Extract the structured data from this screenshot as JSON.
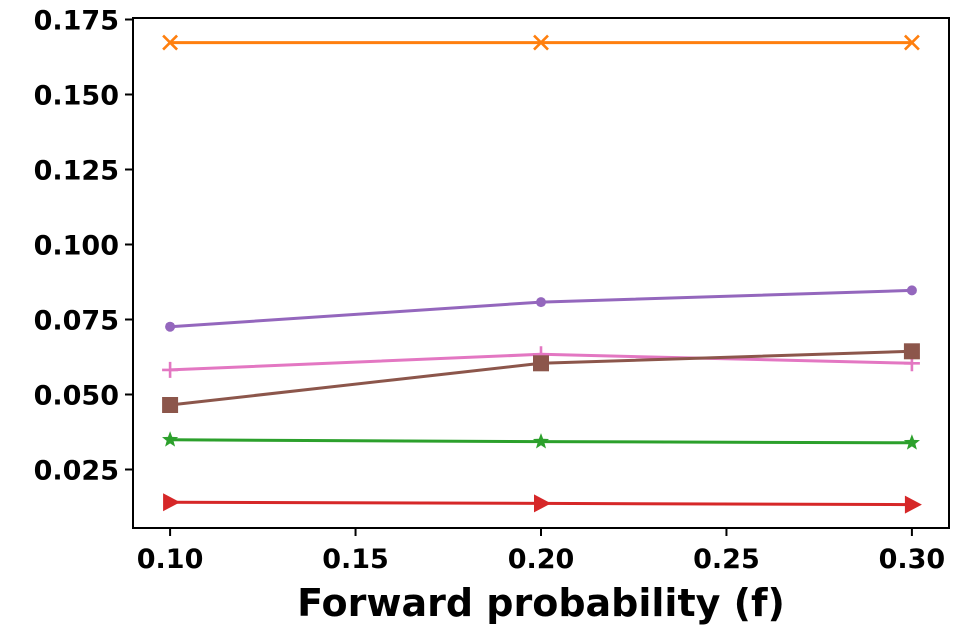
{
  "chart_data": {
    "type": "line",
    "xlabel": "Forward probability (f)",
    "ylabel": "",
    "x": [
      0.1,
      0.2,
      0.3
    ],
    "xlim": [
      0.09,
      0.31
    ],
    "ylim": [
      0.0055,
      0.1755
    ],
    "xticks": [
      "0.10",
      "0.15",
      "0.20",
      "0.25",
      "0.30"
    ],
    "yticks": [
      "0.025",
      "0.050",
      "0.075",
      "0.100",
      "0.125",
      "0.150",
      "0.175"
    ],
    "grid": false,
    "legend": "none",
    "series": [
      {
        "color": "#ff7f0e",
        "marker": "x",
        "values": [
          0.1673,
          0.1673,
          0.1673
        ]
      },
      {
        "color": "#9467bd",
        "marker": "circle",
        "values": [
          0.0726,
          0.0808,
          0.0847
        ]
      },
      {
        "color": "#e377c2",
        "marker": "plus",
        "values": [
          0.0582,
          0.0634,
          0.0604
        ]
      },
      {
        "color": "#8c564b",
        "marker": "square",
        "values": [
          0.0465,
          0.0604,
          0.0644
        ]
      },
      {
        "color": "#2ca02c",
        "marker": "star",
        "values": [
          0.0349,
          0.0343,
          0.0339
        ]
      },
      {
        "color": "#d62728",
        "marker": "triangle-right",
        "values": [
          0.0141,
          0.0137,
          0.0133
        ]
      }
    ]
  }
}
